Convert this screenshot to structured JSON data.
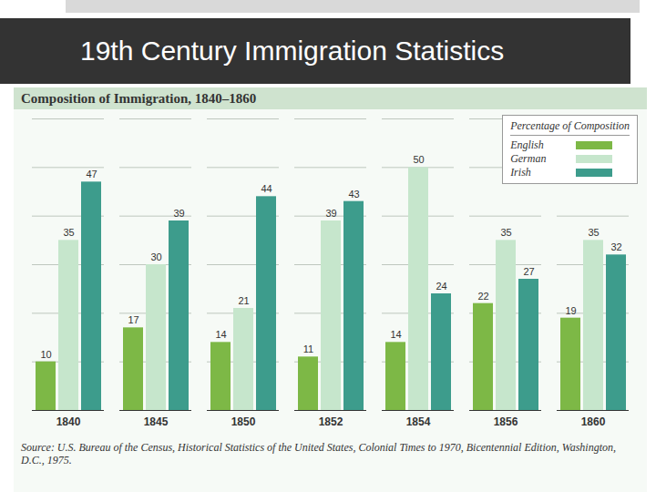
{
  "slide_title": "19th Century Immigration Statistics",
  "chart_data": {
    "type": "bar",
    "title": "Composition of Immigration, 1840–1860",
    "legend_title": "Percentage of Composition",
    "source": "Source: U.S. Bureau of the Census, Historical Statistics of the United States, Colonial Times to 1970, Bicentennial Edition, Washington, D.C., 1975.",
    "categories": [
      "1840",
      "1845",
      "1850",
      "1852",
      "1854",
      "1856",
      "1860"
    ],
    "series": [
      {
        "name": "English",
        "color": "#7db846",
        "values": [
          10,
          17,
          14,
          11,
          14,
          22,
          19
        ]
      },
      {
        "name": "German",
        "color": "#c6e6cc",
        "values": [
          35,
          30,
          21,
          39,
          50,
          35,
          35
        ]
      },
      {
        "name": "Irish",
        "color": "#3d9c8c",
        "values": [
          47,
          39,
          44,
          43,
          24,
          27,
          32
        ]
      }
    ],
    "ylim": [
      0,
      60
    ],
    "yticks": [
      0,
      10,
      20,
      30,
      40,
      50,
      60
    ],
    "grid": true,
    "legend": "top-right",
    "data_labels": true,
    "tick_labels": "x"
  }
}
